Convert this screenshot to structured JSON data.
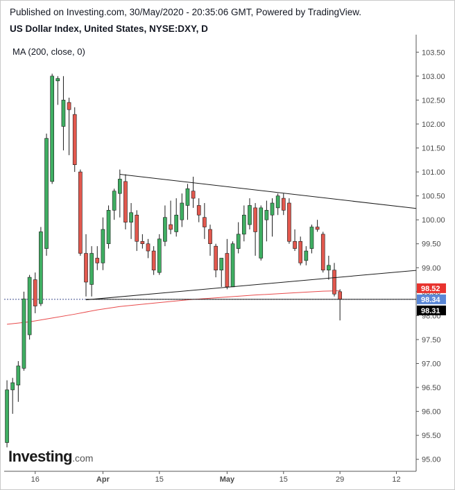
{
  "header": {
    "published": "Published on Investing.com, 30/May/2020 - 20:35:06 GMT, Powered by TradingView.",
    "title": "US Dollar Index, United States, NYSE:DXY, D"
  },
  "indicator_label": "MA (200, close, 0)",
  "logo": {
    "main": "Investing",
    "suffix": ".com"
  },
  "colors": {
    "up": "#3fae62",
    "down": "#e2584e",
    "ma_line": "#e8494a",
    "trendline": "#1a1a1a",
    "tag_red": "#e8332e",
    "tag_blue": "#5a87d6",
    "tag_black": "#000000"
  },
  "chart_data": {
    "type": "candlestick",
    "x_ticks": [
      {
        "label": "16",
        "index": 5,
        "bold": false
      },
      {
        "label": "Apr",
        "index": 17,
        "bold": true
      },
      {
        "label": "15",
        "index": 27,
        "bold": false
      },
      {
        "label": "May",
        "index": 39,
        "bold": true
      },
      {
        "label": "15",
        "index": 49,
        "bold": false
      },
      {
        "label": "29",
        "index": 59,
        "bold": false
      },
      {
        "label": "12",
        "index": 69,
        "bold": false
      }
    ],
    "y_ticks": [
      "95.00",
      "95.50",
      "96.00",
      "96.50",
      "97.00",
      "97.50",
      "98.00",
      "98.50",
      "99.00",
      "99.50",
      "100.00",
      "100.50",
      "101.00",
      "101.50",
      "102.00",
      "102.50",
      "103.00",
      "103.50"
    ],
    "ylim": [
      94.75,
      103.75
    ],
    "x_range": [
      -0.5,
      72.5
    ],
    "candles": [
      {
        "o": 95.35,
        "h": 96.65,
        "l": 95.25,
        "c": 96.45
      },
      {
        "o": 96.45,
        "h": 96.7,
        "l": 95.95,
        "c": 96.6
      },
      {
        "o": 96.55,
        "h": 97.05,
        "l": 96.2,
        "c": 96.95
      },
      {
        "o": 96.9,
        "h": 98.5,
        "l": 96.85,
        "c": 98.35
      },
      {
        "o": 97.6,
        "h": 98.85,
        "l": 97.5,
        "c": 98.8
      },
      {
        "o": 98.75,
        "h": 98.9,
        "l": 98.05,
        "c": 98.2
      },
      {
        "o": 98.25,
        "h": 99.85,
        "l": 98.2,
        "c": 99.75
      },
      {
        "o": 99.4,
        "h": 101.8,
        "l": 99.25,
        "c": 101.7
      },
      {
        "o": 100.8,
        "h": 103.05,
        "l": 100.75,
        "c": 103.0
      },
      {
        "o": 102.9,
        "h": 103.0,
        "l": 102.4,
        "c": 102.95
      },
      {
        "o": 101.95,
        "h": 103.0,
        "l": 101.45,
        "c": 102.5
      },
      {
        "o": 102.45,
        "h": 102.55,
        "l": 101.35,
        "c": 102.3
      },
      {
        "o": 102.2,
        "h": 102.35,
        "l": 101.0,
        "c": 101.15
      },
      {
        "o": 101.0,
        "h": 101.05,
        "l": 99.25,
        "c": 99.3
      },
      {
        "o": 99.3,
        "h": 99.7,
        "l": 98.4,
        "c": 98.7
      },
      {
        "o": 98.65,
        "h": 99.45,
        "l": 98.4,
        "c": 99.3
      },
      {
        "o": 99.2,
        "h": 99.45,
        "l": 98.95,
        "c": 99.1
      },
      {
        "o": 99.1,
        "h": 100.05,
        "l": 98.95,
        "c": 99.8
      },
      {
        "o": 99.5,
        "h": 100.3,
        "l": 99.4,
        "c": 100.2
      },
      {
        "o": 100.2,
        "h": 100.65,
        "l": 100.0,
        "c": 100.6
      },
      {
        "o": 100.55,
        "h": 101.05,
        "l": 100.05,
        "c": 100.85
      },
      {
        "o": 100.8,
        "h": 100.95,
        "l": 99.8,
        "c": 99.95
      },
      {
        "o": 99.95,
        "h": 100.35,
        "l": 99.6,
        "c": 100.15
      },
      {
        "o": 100.1,
        "h": 100.2,
        "l": 99.35,
        "c": 99.55
      },
      {
        "o": 99.55,
        "h": 99.7,
        "l": 99.4,
        "c": 99.5
      },
      {
        "o": 99.5,
        "h": 99.6,
        "l": 99.2,
        "c": 99.35
      },
      {
        "o": 99.35,
        "h": 99.45,
        "l": 98.85,
        "c": 98.95
      },
      {
        "o": 98.9,
        "h": 99.7,
        "l": 98.85,
        "c": 99.6
      },
      {
        "o": 99.55,
        "h": 100.3,
        "l": 99.45,
        "c": 100.05
      },
      {
        "o": 99.9,
        "h": 100.4,
        "l": 99.7,
        "c": 99.8
      },
      {
        "o": 99.75,
        "h": 100.45,
        "l": 99.65,
        "c": 100.1
      },
      {
        "o": 100.0,
        "h": 100.55,
        "l": 99.85,
        "c": 100.35
      },
      {
        "o": 100.3,
        "h": 100.75,
        "l": 100.0,
        "c": 100.65
      },
      {
        "o": 100.6,
        "h": 100.9,
        "l": 100.25,
        "c": 100.45
      },
      {
        "o": 100.3,
        "h": 100.45,
        "l": 99.95,
        "c": 100.1
      },
      {
        "o": 100.05,
        "h": 100.35,
        "l": 99.6,
        "c": 99.85
      },
      {
        "o": 99.8,
        "h": 99.9,
        "l": 99.25,
        "c": 99.5
      },
      {
        "o": 99.45,
        "h": 99.5,
        "l": 98.8,
        "c": 98.95
      },
      {
        "o": 98.95,
        "h": 99.2,
        "l": 98.6,
        "c": 99.2
      },
      {
        "o": 99.3,
        "h": 99.6,
        "l": 98.55,
        "c": 98.6
      },
      {
        "o": 98.6,
        "h": 99.55,
        "l": 98.6,
        "c": 99.5
      },
      {
        "o": 99.4,
        "h": 99.95,
        "l": 99.3,
        "c": 99.7
      },
      {
        "o": 99.7,
        "h": 100.3,
        "l": 99.55,
        "c": 100.1
      },
      {
        "o": 99.9,
        "h": 100.45,
        "l": 99.8,
        "c": 100.3
      },
      {
        "o": 100.25,
        "h": 100.35,
        "l": 99.25,
        "c": 99.75
      },
      {
        "o": 99.2,
        "h": 100.3,
        "l": 99.15,
        "c": 100.25
      },
      {
        "o": 100.0,
        "h": 100.4,
        "l": 99.55,
        "c": 100.2
      },
      {
        "o": 100.1,
        "h": 100.45,
        "l": 99.65,
        "c": 100.35
      },
      {
        "o": 100.25,
        "h": 100.55,
        "l": 100.1,
        "c": 100.5
      },
      {
        "o": 100.45,
        "h": 100.55,
        "l": 100.1,
        "c": 100.2
      },
      {
        "o": 100.35,
        "h": 100.45,
        "l": 99.5,
        "c": 99.55
      },
      {
        "o": 99.55,
        "h": 99.8,
        "l": 99.35,
        "c": 99.4
      },
      {
        "o": 99.55,
        "h": 99.65,
        "l": 99.05,
        "c": 99.1
      },
      {
        "o": 99.15,
        "h": 99.45,
        "l": 99.05,
        "c": 99.35
      },
      {
        "o": 99.4,
        "h": 99.9,
        "l": 99.3,
        "c": 99.85
      },
      {
        "o": 99.85,
        "h": 100.0,
        "l": 99.75,
        "c": 99.8
      },
      {
        "o": 99.7,
        "h": 99.75,
        "l": 98.9,
        "c": 98.95
      },
      {
        "o": 98.95,
        "h": 99.25,
        "l": 98.75,
        "c": 99.05
      },
      {
        "o": 98.95,
        "h": 99.1,
        "l": 98.4,
        "c": 98.45
      },
      {
        "o": 98.5,
        "h": 98.55,
        "l": 97.9,
        "c": 98.34
      }
    ],
    "ma200": [
      {
        "i": 0,
        "v": 97.82
      },
      {
        "i": 4,
        "v": 97.87
      },
      {
        "i": 8,
        "v": 97.95
      },
      {
        "i": 12,
        "v": 98.03
      },
      {
        "i": 16,
        "v": 98.12
      },
      {
        "i": 20,
        "v": 98.19
      },
      {
        "i": 26,
        "v": 98.26
      },
      {
        "i": 32,
        "v": 98.33
      },
      {
        "i": 38,
        "v": 98.38
      },
      {
        "i": 44,
        "v": 98.43
      },
      {
        "i": 50,
        "v": 98.47
      },
      {
        "i": 56,
        "v": 98.51
      },
      {
        "i": 59,
        "v": 98.52
      }
    ],
    "trendlines": [
      {
        "x1": 20,
        "y1": 100.95,
        "x2": 73,
        "y2": 100.23
      },
      {
        "x1": 14,
        "y1": 98.33,
        "x2": 73,
        "y2": 98.95
      },
      {
        "x1": 14,
        "y1": 98.34,
        "x2": 73,
        "y2": 98.34
      }
    ],
    "dashed_level": 98.34,
    "price_tags": [
      {
        "label": "98.52",
        "value": 98.52,
        "color": "tag_red"
      },
      {
        "label": "98.34",
        "value": 98.34,
        "color": "tag_blue"
      },
      {
        "label": "98.31",
        "value": 98.31,
        "color": "tag_black"
      }
    ]
  }
}
